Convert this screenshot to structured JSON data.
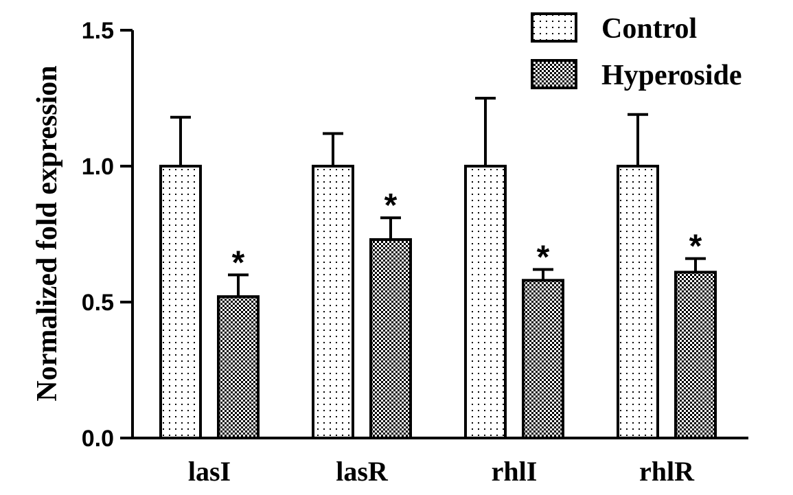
{
  "chart_data": {
    "type": "bar",
    "title": "",
    "xlabel": "",
    "ylabel": "Normalized fold expression",
    "ylim": [
      0,
      1.5
    ],
    "yticks": [
      "0.0",
      "0.5",
      "1.0",
      "1.5"
    ],
    "categories": [
      "lasI",
      "lasR",
      "rhlI",
      "rhlR"
    ],
    "series": [
      {
        "name": "Control",
        "values": [
          1.0,
          1.0,
          1.0,
          1.0
        ],
        "error": [
          0.18,
          0.12,
          0.25,
          0.19
        ],
        "pattern": "sparse-dots",
        "significance": [
          "",
          "",
          "",
          ""
        ]
      },
      {
        "name": "Hyperoside",
        "values": [
          0.52,
          0.73,
          0.58,
          0.61
        ],
        "error": [
          0.08,
          0.08,
          0.04,
          0.05
        ],
        "pattern": "dense-checker",
        "significance": [
          "*",
          "*",
          "*",
          "*"
        ]
      }
    ],
    "legend": "top-right",
    "grid": false
  }
}
